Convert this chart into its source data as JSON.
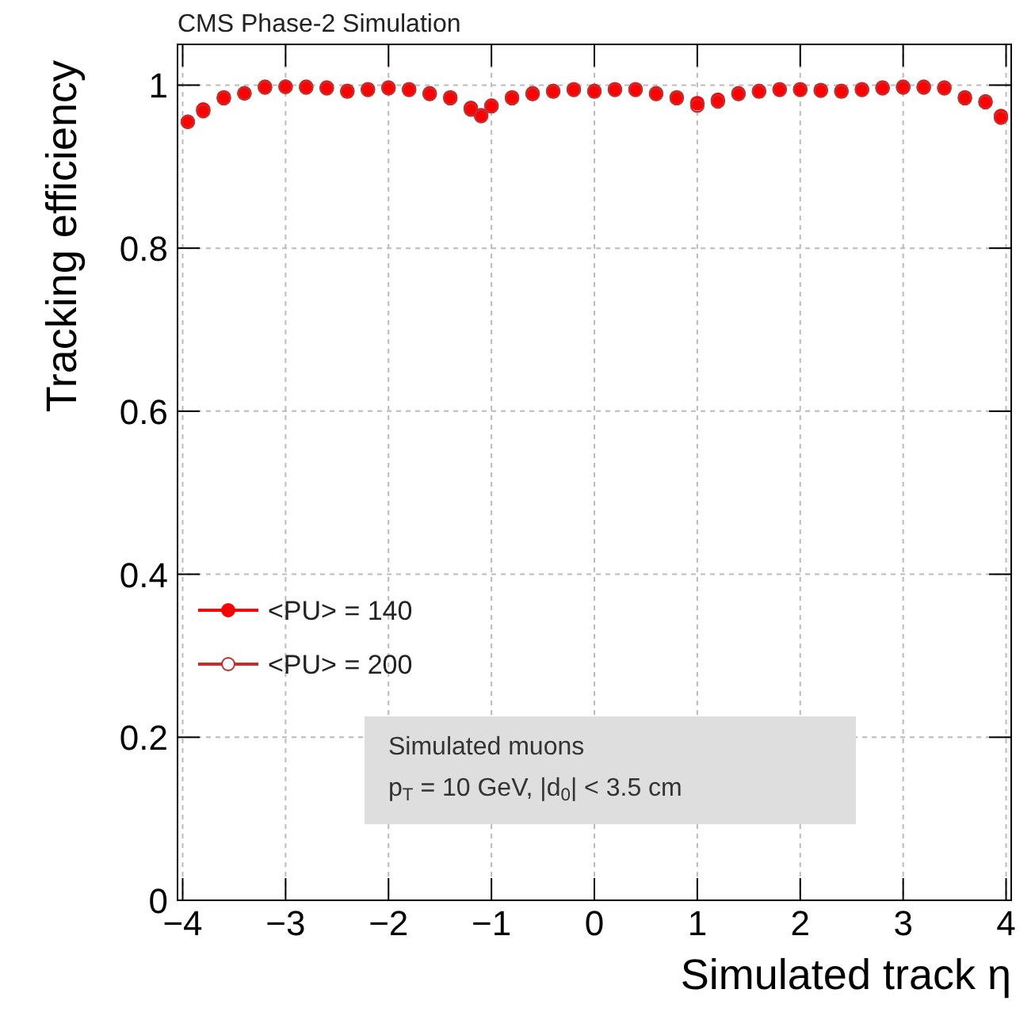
{
  "chart_data": {
    "type": "scatter",
    "title": "CMS Phase-2 Simulation",
    "xlabel": "Simulated track η",
    "ylabel": "Tracking efficiency",
    "x": [
      -3.95,
      -3.8,
      -3.6,
      -3.4,
      -3.2,
      -3.0,
      -2.8,
      -2.6,
      -2.4,
      -2.2,
      -2.0,
      -1.8,
      -1.6,
      -1.4,
      -1.2,
      -1.1,
      -1.0,
      -0.8,
      -0.6,
      -0.4,
      -0.2,
      0.0,
      0.2,
      0.4,
      0.6,
      0.8,
      1.0,
      1.2,
      1.4,
      1.6,
      1.8,
      2.0,
      2.2,
      2.4,
      2.6,
      2.8,
      3.0,
      3.2,
      3.4,
      3.6,
      3.8,
      3.95
    ],
    "series": [
      {
        "name": "<PU> = 140",
        "color": "#ff0000",
        "values": [
          0.955,
          0.97,
          0.985,
          0.99,
          0.998,
          0.998,
          0.998,
          0.997,
          0.993,
          0.995,
          0.997,
          0.995,
          0.99,
          0.985,
          0.972,
          0.963,
          0.975,
          0.985,
          0.99,
          0.993,
          0.995,
          0.993,
          0.995,
          0.995,
          0.99,
          0.985,
          0.978,
          0.982,
          0.99,
          0.993,
          0.995,
          0.995,
          0.994,
          0.993,
          0.995,
          0.997,
          0.998,
          0.998,
          0.997,
          0.985,
          0.98,
          0.962
        ]
      },
      {
        "name": "<PU> = 200",
        "color": "#c03030",
        "values": [
          0.955,
          0.968,
          0.984,
          0.99,
          0.997,
          0.998,
          0.997,
          0.996,
          0.992,
          0.994,
          0.996,
          0.994,
          0.989,
          0.984,
          0.97,
          0.962,
          0.974,
          0.984,
          0.989,
          0.992,
          0.994,
          0.992,
          0.994,
          0.994,
          0.989,
          0.984,
          0.975,
          0.98,
          0.989,
          0.992,
          0.994,
          0.994,
          0.993,
          0.992,
          0.994,
          0.996,
          0.997,
          0.997,
          0.996,
          0.984,
          0.979,
          0.96
        ]
      }
    ],
    "xlim": [
      -4.05,
      4.05
    ],
    "xticks": [
      -4,
      -3,
      -2,
      -1,
      0,
      1,
      2,
      3,
      4
    ],
    "ylim": [
      0,
      1.05
    ],
    "yticks": [
      0,
      {
        "value": 0.2,
        "label": "0.2"
      },
      {
        "value": 0.4,
        "label": "0.4"
      },
      {
        "value": 0.6,
        "label": "0.6"
      },
      {
        "value": 0.8,
        "label": "0.8"
      },
      1
    ],
    "grid": true,
    "legend": "left",
    "marker": "circle",
    "annotations": [
      "Simulated muons",
      "p$_{T}$ = 10 GeV, |d$_{0}$| < 3.5 cm"
    ]
  }
}
